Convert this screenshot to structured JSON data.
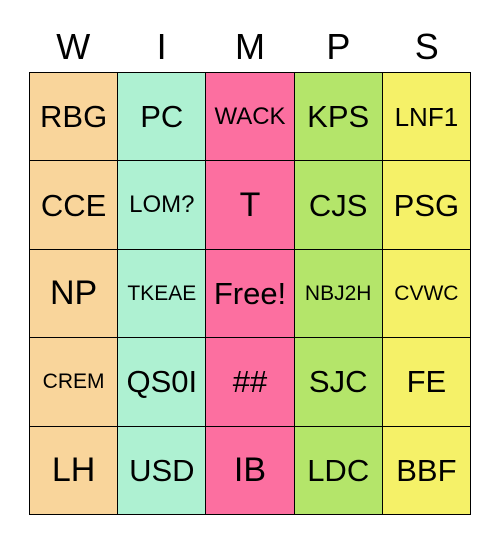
{
  "header": [
    "W",
    "I",
    "M",
    "P",
    "S"
  ],
  "rows": [
    [
      "RBG",
      "PC",
      "WACK",
      "KPS",
      "LNF1"
    ],
    [
      "CCE",
      "LOM?",
      "T",
      "CJS",
      "PSG"
    ],
    [
      "NP",
      "TKEAE",
      "Free!",
      "NBJ2H",
      "CVWC"
    ],
    [
      "CREM",
      "QS0I",
      "##",
      "SJC",
      "FE"
    ],
    [
      "LH",
      "USD",
      "IB",
      "LDC",
      "BBF"
    ]
  ],
  "colors": {
    "W": "#f9d59b",
    "I": "#aef1d2",
    "M": "#fc6fa0",
    "P": "#b4e56a",
    "S": "#f5f168"
  }
}
